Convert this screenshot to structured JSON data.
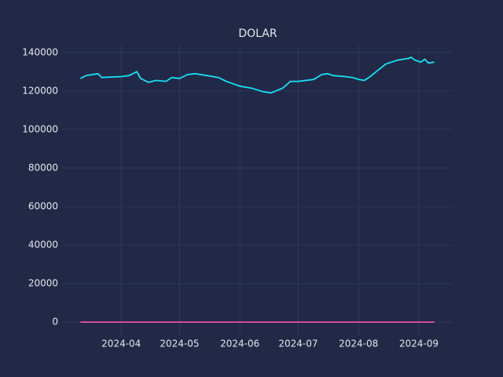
{
  "chart_data": {
    "type": "line",
    "title": "DOLAR",
    "x": [
      "2024-03-11",
      "2024-03-14",
      "2024-03-20",
      "2024-03-22",
      "2024-04-01",
      "2024-04-05",
      "2024-04-09",
      "2024-04-11",
      "2024-04-15",
      "2024-04-19",
      "2024-04-24",
      "2024-04-27",
      "2024-05-01",
      "2024-05-05",
      "2024-05-09",
      "2024-05-15",
      "2024-05-21",
      "2024-05-25",
      "2024-06-01",
      "2024-06-07",
      "2024-06-13",
      "2024-06-17",
      "2024-06-23",
      "2024-06-27",
      "2024-07-01",
      "2024-07-09",
      "2024-07-13",
      "2024-07-16",
      "2024-07-19",
      "2024-07-25",
      "2024-07-29",
      "2024-08-01",
      "2024-08-04",
      "2024-08-07",
      "2024-08-10",
      "2024-08-15",
      "2024-08-21",
      "2024-08-27",
      "2024-08-28",
      "2024-08-30",
      "2024-09-02",
      "2024-09-04",
      "2024-09-06",
      "2024-09-09"
    ],
    "series": [
      {
        "color": "#18e1f5",
        "values": [
          126500,
          128000,
          129000,
          127000,
          127500,
          128000,
          130000,
          126500,
          124500,
          125500,
          125000,
          127000,
          126500,
          128500,
          129000,
          128000,
          127000,
          125000,
          122500,
          121500,
          119600,
          119000,
          121500,
          125000,
          125000,
          126000,
          128500,
          129000,
          128000,
          127500,
          127000,
          126000,
          125500,
          127500,
          130000,
          134000,
          136000,
          137000,
          137500,
          136000,
          135000,
          136500,
          134500,
          135000
        ]
      },
      {
        "color": "#e94fae",
        "values": [
          0,
          0,
          0,
          0,
          0,
          0,
          0,
          0,
          0,
          0,
          0,
          0,
          0,
          0,
          0,
          0,
          0,
          0,
          0,
          0,
          0,
          0,
          0,
          0,
          0,
          0,
          0,
          0,
          0,
          0,
          0,
          0,
          0,
          0,
          0,
          0,
          0,
          0,
          0,
          0,
          0,
          0,
          0,
          0
        ]
      }
    ],
    "xlim": [
      "2024-03-02",
      "2024-09-18"
    ],
    "xticks": [
      "2024-04",
      "2024-05",
      "2024-06",
      "2024-07",
      "2024-08",
      "2024-09"
    ],
    "ylim": [
      -6900,
      144000
    ],
    "yticks": [
      0,
      20000,
      40000,
      60000,
      80000,
      100000,
      120000,
      140000
    ],
    "grid": true
  }
}
